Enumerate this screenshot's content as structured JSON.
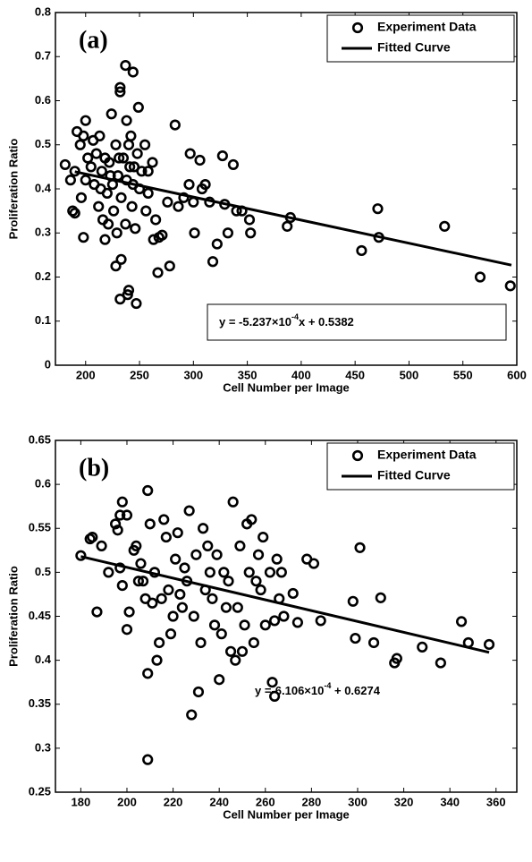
{
  "chart_data": [
    {
      "type": "scatter",
      "label": "(a)",
      "xlabel": "Cell Number per Image",
      "ylabel": "Proliferation Ratio",
      "xlim": [
        172,
        600
      ],
      "ylim": [
        0,
        0.8
      ],
      "xticks": [
        200,
        250,
        300,
        350,
        400,
        450,
        500,
        550,
        600
      ],
      "yticks": [
        0,
        0.1,
        0.2,
        0.3,
        0.4,
        0.5,
        0.6,
        0.7,
        0.8
      ],
      "legend": "upper right",
      "annotation_box": true,
      "annotation": {
        "text": "y = -5.237×10",
        "superscript": "-4",
        "suffix": "x + 0.5382"
      },
      "series": [
        {
          "name": "Experiment Data",
          "color": "#000000",
          "marker": "circle",
          "x": [
            237,
            244,
            232,
            232,
            249,
            224,
            283,
            238,
            200,
            297,
            306,
            327,
            337,
            315,
            329,
            322,
            318,
            301,
            332,
            353,
            352,
            340,
            345,
            390,
            387,
            456,
            471,
            472,
            533,
            566,
            594,
            278,
            267,
            240,
            239,
            232,
            247,
            228,
            233,
            218,
            198,
            190,
            188,
            181,
            263,
            268,
            271,
            276,
            286,
            291,
            296,
            300,
            308,
            311,
            262,
            258,
            265,
            256,
            250,
            245,
            240,
            235,
            230,
            225,
            220,
            215,
            210,
            205,
            200,
            195,
            192,
            198,
            207,
            212,
            216,
            222,
            228,
            233,
            238,
            243,
            248,
            252,
            208,
            202,
            213,
            226,
            237,
            246,
            218,
            223,
            190,
            186,
            196,
            242,
            255,
            258,
            229,
            221,
            241,
            244,
            231,
            214
          ],
          "values": [
            0.68,
            0.665,
            0.63,
            0.62,
            0.585,
            0.57,
            0.545,
            0.555,
            0.555,
            0.48,
            0.465,
            0.475,
            0.455,
            0.37,
            0.365,
            0.275,
            0.235,
            0.3,
            0.3,
            0.3,
            0.33,
            0.35,
            0.35,
            0.335,
            0.315,
            0.26,
            0.355,
            0.29,
            0.315,
            0.2,
            0.18,
            0.225,
            0.21,
            0.17,
            0.16,
            0.15,
            0.14,
            0.225,
            0.24,
            0.285,
            0.29,
            0.345,
            0.35,
            0.455,
            0.285,
            0.29,
            0.295,
            0.37,
            0.36,
            0.38,
            0.41,
            0.37,
            0.4,
            0.41,
            0.46,
            0.44,
            0.33,
            0.35,
            0.4,
            0.45,
            0.5,
            0.47,
            0.43,
            0.41,
            0.39,
            0.44,
            0.48,
            0.45,
            0.42,
            0.5,
            0.53,
            0.52,
            0.51,
            0.36,
            0.33,
            0.46,
            0.5,
            0.38,
            0.42,
            0.36,
            0.48,
            0.44,
            0.41,
            0.47,
            0.52,
            0.35,
            0.32,
            0.31,
            0.47,
            0.43,
            0.44,
            0.42,
            0.38,
            0.52,
            0.5,
            0.39,
            0.3,
            0.32,
            0.45,
            0.41,
            0.47,
            0.4
          ]
        },
        {
          "name": "Fitted Curve",
          "color": "#000000",
          "marker": "line",
          "x": [
            190,
            595
          ],
          "values": [
            0.439,
            0.227
          ]
        }
      ]
    },
    {
      "type": "scatter",
      "label": "(b)",
      "xlabel": "Cell Number per Image",
      "ylabel": "Proliferation Ratio",
      "xlim": [
        169,
        369
      ],
      "ylim": [
        0.25,
        0.65
      ],
      "xticks": [
        180,
        200,
        220,
        240,
        260,
        280,
        300,
        320,
        340,
        360
      ],
      "yticks": [
        0.25,
        0.3,
        0.35,
        0.4,
        0.45,
        0.5,
        0.55,
        0.6,
        0.65
      ],
      "legend": "upper right",
      "annotation_box": false,
      "annotation": {
        "text": "y =-6.106×10",
        "superscript": "-4",
        "suffix": " + 0.6274"
      },
      "series": [
        {
          "name": "Experiment Data",
          "color": "#000000",
          "marker": "circle",
          "x": [
            180,
            184,
            185,
            187,
            189,
            192,
            195,
            196,
            197,
            198,
            200,
            200,
            201,
            198,
            197,
            203,
            204,
            206,
            207,
            208,
            209,
            209,
            209,
            210,
            212,
            213,
            214,
            215,
            216,
            217,
            218,
            219,
            220,
            221,
            222,
            224,
            225,
            226,
            227,
            228,
            229,
            230,
            231,
            232,
            233,
            234,
            235,
            236,
            237,
            238,
            239,
            240,
            241,
            242,
            244,
            246,
            247,
            248,
            249,
            250,
            251,
            252,
            253,
            254,
            256,
            257,
            258,
            259,
            260,
            262,
            263,
            264,
            264,
            265,
            266,
            267,
            268,
            272,
            274,
            278,
            281,
            284,
            298,
            299,
            301,
            307,
            310,
            316,
            317,
            328,
            336,
            345,
            348,
            357,
            205,
            211,
            223,
            243,
            255,
            245
          ],
          "values": [
            0.519,
            0.538,
            0.54,
            0.455,
            0.53,
            0.5,
            0.555,
            0.548,
            0.565,
            0.58,
            0.565,
            0.435,
            0.455,
            0.485,
            0.505,
            0.525,
            0.53,
            0.51,
            0.49,
            0.47,
            0.385,
            0.287,
            0.593,
            0.555,
            0.5,
            0.4,
            0.42,
            0.47,
            0.56,
            0.54,
            0.48,
            0.43,
            0.45,
            0.515,
            0.545,
            0.46,
            0.505,
            0.49,
            0.57,
            0.338,
            0.45,
            0.52,
            0.364,
            0.42,
            0.55,
            0.48,
            0.53,
            0.5,
            0.47,
            0.44,
            0.52,
            0.378,
            0.43,
            0.5,
            0.49,
            0.58,
            0.4,
            0.46,
            0.53,
            0.41,
            0.44,
            0.555,
            0.5,
            0.56,
            0.49,
            0.52,
            0.48,
            0.54,
            0.44,
            0.5,
            0.375,
            0.359,
            0.445,
            0.515,
            0.47,
            0.5,
            0.45,
            0.476,
            0.443,
            0.515,
            0.51,
            0.445,
            0.467,
            0.425,
            0.528,
            0.42,
            0.471,
            0.397,
            0.402,
            0.415,
            0.397,
            0.444,
            0.42,
            0.418,
            0.49,
            0.465,
            0.475,
            0.46,
            0.42,
            0.41
          ]
        },
        {
          "name": "Fitted Curve",
          "color": "#000000",
          "marker": "line",
          "x": [
            180,
            357
          ],
          "values": [
            0.518,
            0.409
          ]
        }
      ]
    }
  ]
}
